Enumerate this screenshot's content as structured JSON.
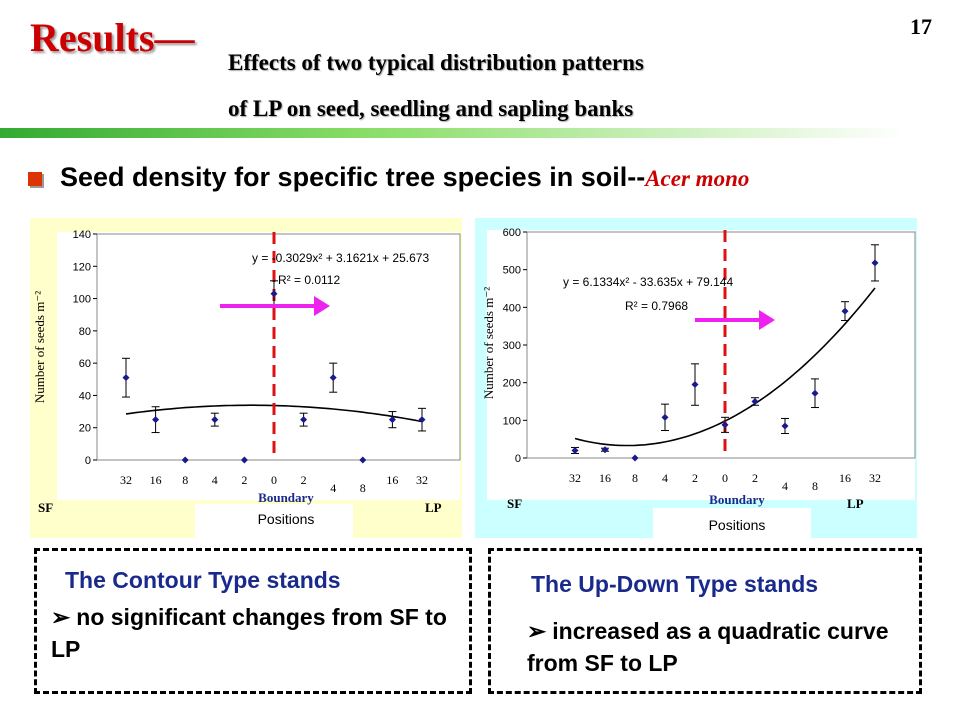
{
  "slide_number": "17",
  "title": {
    "main": "Results—",
    "sub_line1": "Effects of two typical distribution patterns",
    "sub_line2": "of LP on seed, seedling and sapling banks"
  },
  "heading": {
    "text": "Seed density for specific tree species in soil--",
    "species": "Acer mono"
  },
  "colors": {
    "title": "#cc0000",
    "left_chart_bg": "#ffffcc",
    "right_chart_bg": "#ccffff",
    "boundary_line": "#dd1111",
    "arrow": "#ee22ee",
    "points": "#1a1a8c",
    "box_title": "#1a2a8c"
  },
  "chart_data": [
    {
      "type": "scatter",
      "ylabel": "Number of seeds m⁻²",
      "xlabel": "Positions",
      "ylim": [
        0,
        140
      ],
      "yticks": [
        0,
        20,
        40,
        60,
        80,
        100,
        120,
        140
      ],
      "x_tick_labels": [
        "32",
        "16",
        "8",
        "4",
        "2",
        "0",
        "2",
        "4",
        "8",
        "16",
        "32"
      ],
      "points": [
        {
          "position": "SF 32",
          "y": 51,
          "err": 12
        },
        {
          "position": "SF 16",
          "y": 25,
          "err": 8
        },
        {
          "position": "SF 8",
          "y": 0,
          "err": 0
        },
        {
          "position": "SF 4",
          "y": 25,
          "err": 4
        },
        {
          "position": "SF 2",
          "y": 0,
          "err": 0
        },
        {
          "position": "0",
          "y": 103,
          "err": 8
        },
        {
          "position": "LP 2",
          "y": 25,
          "err": 4
        },
        {
          "position": "LP 4",
          "y": 51,
          "err": 9
        },
        {
          "position": "LP 8",
          "y": 0,
          "err": 0
        },
        {
          "position": "LP 16",
          "y": 25,
          "err": 5
        },
        {
          "position": "LP 32",
          "y": 25,
          "err": 7
        }
      ],
      "trend_equation": "y = -0.3029x² + 3.1621x + 25.673",
      "r_squared": "R² = 0.0112",
      "trend_coef": [
        -0.3029,
        3.1621,
        25.673
      ],
      "boundary_label": "Boundary",
      "left_label": "SF",
      "right_label": "LP"
    },
    {
      "type": "scatter",
      "ylabel": "Number of seeds m⁻²",
      "xlabel": "Positions",
      "ylim": [
        0,
        600
      ],
      "yticks": [
        0,
        100,
        200,
        300,
        400,
        500,
        600
      ],
      "x_tick_labels": [
        "32",
        "16",
        "8",
        "4",
        "2",
        "0",
        "2",
        "4",
        "8",
        "16",
        "32"
      ],
      "points": [
        {
          "position": "SF 32",
          "y": 20,
          "err": 8
        },
        {
          "position": "SF 16",
          "y": 22,
          "err": 4
        },
        {
          "position": "SF 8",
          "y": 0,
          "err": 0
        },
        {
          "position": "SF 4",
          "y": 108,
          "err": 35
        },
        {
          "position": "SF 2",
          "y": 195,
          "err": 55
        },
        {
          "position": "0",
          "y": 88,
          "err": 20
        },
        {
          "position": "LP 2",
          "y": 150,
          "err": 10
        },
        {
          "position": "LP 4",
          "y": 85,
          "err": 20
        },
        {
          "position": "LP 8",
          "y": 172,
          "err": 38
        },
        {
          "position": "LP 16",
          "y": 390,
          "err": 25
        },
        {
          "position": "LP 32",
          "y": 518,
          "err": 48
        }
      ],
      "trend_equation": "y = 6.1334x² - 33.635x + 79.144",
      "r_squared": "R² = 0.7968",
      "trend_coef": [
        6.1334,
        -33.635,
        79.144
      ],
      "boundary_label": "Boundary",
      "left_label": "SF",
      "right_label": "LP"
    }
  ],
  "left_box": {
    "title": "The Contour Type stands",
    "item": "no significant changes from SF to LP"
  },
  "right_box": {
    "title": "The Up-Down Type stands",
    "item": "increased as a quadratic curve from SF to LP"
  }
}
